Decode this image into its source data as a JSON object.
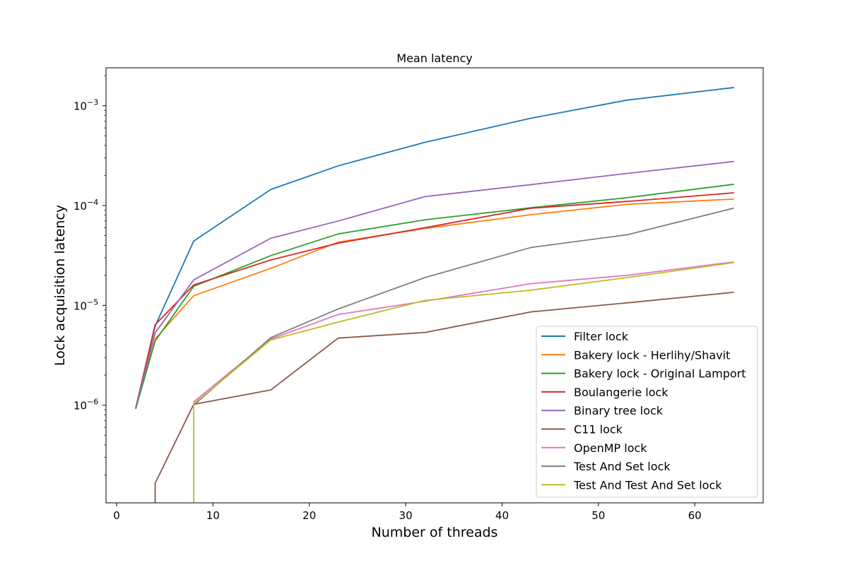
{
  "chart_data": {
    "type": "line",
    "title": "Mean latency",
    "xlabel": "Number of threads",
    "ylabel": "Lock acquisition latency",
    "yscale": "log",
    "xlim": [
      -1.1,
      67.1
    ],
    "ylim": [
      1.05e-07,
      0.0024
    ],
    "xticks": [
      0,
      10,
      20,
      30,
      40,
      50,
      60
    ],
    "yticks": [
      {
        "value": 1e-06,
        "base": "10",
        "exp": "−6"
      },
      {
        "value": 1e-05,
        "base": "10",
        "exp": "−5"
      },
      {
        "value": 0.0001,
        "base": "10",
        "exp": "−4"
      },
      {
        "value": 0.001,
        "base": "10",
        "exp": "−3"
      }
    ],
    "grid": false,
    "legend_position": "lower-right",
    "series": [
      {
        "name": "Filter lock",
        "color": "#1f77b4",
        "x": [
          2,
          4,
          8,
          16,
          23,
          32,
          43,
          53,
          64
        ],
        "y": [
          9.5e-07,
          6.2e-06,
          4.4e-05,
          0.000145,
          0.00025,
          0.00043,
          0.00075,
          0.00114,
          0.00152
        ]
      },
      {
        "name": "Bakery lock - Herlihy/Shavit",
        "color": "#ff7f0e",
        "x": [
          2,
          4,
          8,
          16,
          23,
          32,
          43,
          53,
          64
        ],
        "y": [
          9.3e-07,
          4.6e-06,
          1.25e-05,
          2.35e-05,
          4.3e-05,
          5.9e-05,
          8.1e-05,
          0.000103,
          0.000116
        ]
      },
      {
        "name": "Bakery lock - Original Lamport",
        "color": "#2ca02c",
        "x": [
          2,
          4,
          8,
          16,
          23,
          32,
          43,
          53,
          64
        ],
        "y": [
          9.3e-07,
          4.4e-06,
          1.55e-05,
          3.15e-05,
          5.2e-05,
          7.2e-05,
          9.5e-05,
          0.00012,
          0.000163
        ]
      },
      {
        "name": "Boulangerie lock",
        "color": "#d62728",
        "x": [
          2,
          4,
          8,
          16,
          23,
          32,
          43,
          53,
          64
        ],
        "y": [
          9.5e-07,
          6.4e-06,
          1.6e-05,
          2.85e-05,
          4.2e-05,
          6e-05,
          9.4e-05,
          0.00011,
          0.000134
        ]
      },
      {
        "name": "Binary tree lock",
        "color": "#9467bd",
        "x": [
          2,
          4,
          8,
          16,
          23,
          32,
          43,
          53,
          64
        ],
        "y": [
          9.6e-07,
          5.3e-06,
          1.8e-05,
          4.7e-05,
          7e-05,
          0.000123,
          0.000162,
          0.00021,
          0.000276
        ]
      },
      {
        "name": "C11 lock",
        "color": "#8c564b",
        "x": [
          4,
          4,
          8,
          16,
          23,
          32,
          43,
          53,
          64
        ],
        "y": [
          1e-07,
          1.65e-07,
          1.02e-06,
          1.42e-06,
          4.7e-06,
          5.35e-06,
          8.6e-06,
          1.06e-05,
          1.35e-05
        ]
      },
      {
        "name": "OpenMP lock",
        "color": "#e377c2",
        "x": [
          8,
          16,
          23,
          32,
          43,
          53,
          64
        ],
        "y": [
          1.08e-06,
          4.6e-06,
          8.1e-06,
          1.1e-05,
          1.65e-05,
          2e-05,
          2.72e-05
        ]
      },
      {
        "name": "Test And Set lock",
        "color": "#7f7f7f",
        "x": [
          8,
          16,
          23,
          32,
          43,
          53,
          64
        ],
        "y": [
          1e-06,
          4.75e-06,
          9.2e-06,
          1.9e-05,
          3.8e-05,
          5.1e-05,
          9.4e-05
        ]
      },
      {
        "name": "Test And Test And Set lock",
        "color": "#bcbd22",
        "x": [
          8,
          8,
          16,
          23,
          32,
          43,
          53,
          64
        ],
        "y": [
          1e-07,
          1.03e-06,
          4.5e-06,
          6.8e-06,
          1.12e-05,
          1.42e-05,
          1.9e-05,
          2.68e-05
        ]
      }
    ]
  }
}
